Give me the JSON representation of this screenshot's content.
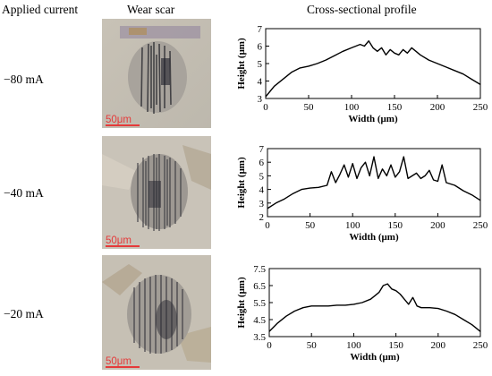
{
  "headers": {
    "applied_current": "Applied current",
    "wear_scar": "Wear scar",
    "profile": "Cross-sectional profile"
  },
  "currents": [
    "−80 mA",
    "−40 mA",
    "−20 mA"
  ],
  "scale_bar": "50μm",
  "colors": {
    "scale_bar": "#e53a3a",
    "line": "#000000"
  },
  "chart_data": [
    {
      "type": "line",
      "xlabel": "Width (μm)",
      "ylabel": "Height (μm)",
      "xlim": [
        0,
        250
      ],
      "ylim": [
        3,
        7
      ],
      "xticks": [
        "0",
        "50",
        "100",
        "150",
        "200",
        "250"
      ],
      "yticks": [
        "3",
        "4",
        "5",
        "6",
        "7"
      ],
      "grid": false,
      "series": [
        {
          "x": [
            0,
            10,
            20,
            30,
            40,
            50,
            60,
            70,
            80,
            90,
            100,
            105,
            110,
            115,
            120,
            125,
            130,
            135,
            140,
            145,
            150,
            155,
            160,
            165,
            170,
            175,
            180,
            190,
            200,
            210,
            220,
            230,
            240,
            250
          ],
          "y": [
            3.1,
            3.7,
            4.1,
            4.5,
            4.75,
            4.85,
            5.0,
            5.2,
            5.45,
            5.7,
            5.9,
            6.0,
            6.1,
            6.0,
            6.3,
            5.9,
            5.7,
            5.9,
            5.5,
            5.8,
            5.6,
            5.5,
            5.8,
            5.6,
            5.9,
            5.7,
            5.5,
            5.2,
            5.0,
            4.8,
            4.6,
            4.4,
            4.1,
            3.8
          ]
        }
      ]
    },
    {
      "type": "line",
      "xlabel": "Width (μm)",
      "ylabel": "Height (μm)",
      "xlim": [
        0,
        250
      ],
      "ylim": [
        2,
        7
      ],
      "xticks": [
        "0",
        "50",
        "100",
        "150",
        "200",
        "250"
      ],
      "yticks": [
        "2",
        "3",
        "4",
        "5",
        "6",
        "7"
      ],
      "grid": false,
      "series": [
        {
          "x": [
            0,
            10,
            20,
            30,
            40,
            50,
            60,
            70,
            75,
            80,
            85,
            90,
            95,
            100,
            105,
            110,
            115,
            120,
            125,
            130,
            135,
            140,
            145,
            150,
            155,
            160,
            165,
            170,
            175,
            180,
            185,
            190,
            195,
            200,
            205,
            210,
            220,
            230,
            240,
            250
          ],
          "y": [
            2.6,
            3.0,
            3.3,
            3.7,
            4.0,
            4.1,
            4.15,
            4.3,
            5.3,
            4.5,
            5.1,
            5.8,
            4.9,
            5.9,
            4.8,
            5.6,
            6.0,
            5.0,
            6.4,
            4.8,
            5.5,
            5.0,
            5.8,
            4.9,
            5.3,
            6.4,
            4.8,
            5.0,
            5.2,
            4.8,
            5.0,
            5.4,
            4.7,
            4.6,
            5.8,
            4.5,
            4.3,
            3.9,
            3.6,
            3.2
          ]
        }
      ]
    },
    {
      "type": "line",
      "xlabel": "Width (μm)",
      "ylabel": "Height (μm)",
      "xlim": [
        0,
        250
      ],
      "ylim": [
        3.5,
        7.5
      ],
      "xticks": [
        "0",
        "50",
        "100",
        "150",
        "200",
        "250"
      ],
      "yticks": [
        "3.5",
        "4.5",
        "5.5",
        "6.5",
        "7.5"
      ],
      "grid": false,
      "series": [
        {
          "x": [
            0,
            10,
            20,
            30,
            40,
            50,
            60,
            70,
            80,
            90,
            100,
            110,
            120,
            125,
            130,
            135,
            140,
            145,
            150,
            155,
            160,
            165,
            170,
            175,
            180,
            190,
            200,
            210,
            220,
            230,
            240,
            250
          ],
          "y": [
            3.8,
            4.3,
            4.7,
            5.0,
            5.2,
            5.3,
            5.3,
            5.3,
            5.35,
            5.35,
            5.4,
            5.5,
            5.7,
            5.9,
            6.1,
            6.5,
            6.6,
            6.3,
            6.2,
            6.0,
            5.7,
            5.4,
            5.8,
            5.3,
            5.2,
            5.2,
            5.15,
            5.0,
            4.8,
            4.5,
            4.2,
            3.8
          ]
        }
      ]
    }
  ]
}
